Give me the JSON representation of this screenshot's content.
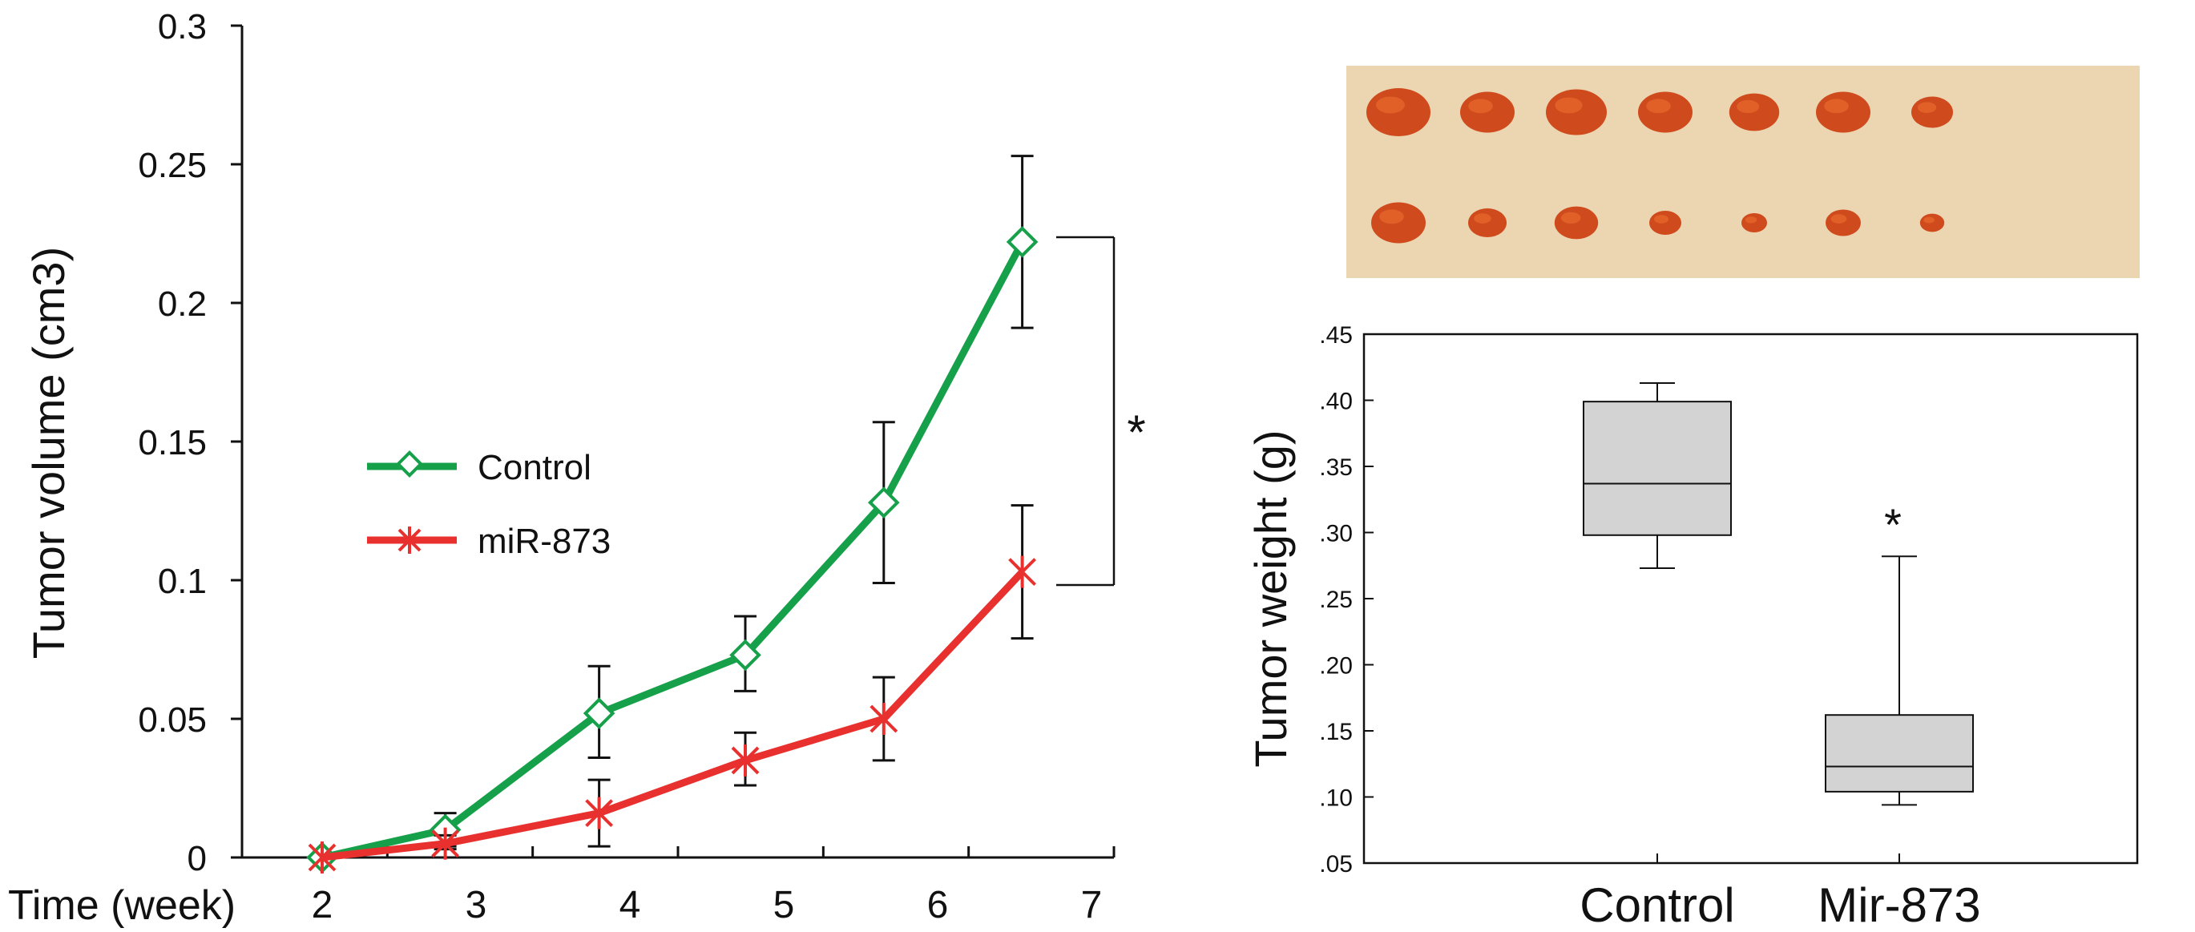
{
  "colors": {
    "control": "#16a04a",
    "mir873": "#e8312f",
    "box_fill": "#d3d3d3",
    "photo_bg": "#ecd5b1",
    "tumor": "#cf4a1c",
    "axis": "#111111"
  },
  "chart_data": [
    {
      "type": "line",
      "title": "",
      "xlabel": "Time (week)",
      "ylabel": "Tumor volume (cm3)",
      "x": [
        2,
        3,
        4,
        5,
        6,
        7
      ],
      "x_tick_labels": [
        "2",
        "3",
        "4",
        "5",
        "6",
        "7"
      ],
      "y_tick_labels": [
        "0",
        "0.05",
        "0.1",
        "0.15",
        "0.2",
        "0.25",
        "0.3"
      ],
      "ylim": [
        0,
        0.3
      ],
      "legend": "center-left",
      "series": [
        {
          "name": "Control",
          "marker": "diamond",
          "color": "#16a04a",
          "points": [
            {
              "x": 2,
              "y": 0.0,
              "err_low": 0.0,
              "err_high": 0.0
            },
            {
              "x": 2.8,
              "y": 0.01,
              "err_low": 0.004,
              "err_high": 0.016
            },
            {
              "x": 3.8,
              "y": 0.052,
              "err_low": 0.036,
              "err_high": 0.069
            },
            {
              "x": 4.75,
              "y": 0.073,
              "err_low": 0.06,
              "err_high": 0.087
            },
            {
              "x": 5.65,
              "y": 0.128,
              "err_low": 0.099,
              "err_high": 0.157
            },
            {
              "x": 6.55,
              "y": 0.222,
              "err_low": 0.191,
              "err_high": 0.253
            }
          ]
        },
        {
          "name": "miR-873",
          "marker": "asterisk",
          "color": "#e8312f",
          "points": [
            {
              "x": 2,
              "y": 0.0,
              "err_low": 0.0,
              "err_high": 0.0
            },
            {
              "x": 2.8,
              "y": 0.005,
              "err_low": 0.003,
              "err_high": 0.008
            },
            {
              "x": 3.8,
              "y": 0.016,
              "err_low": 0.004,
              "err_high": 0.028
            },
            {
              "x": 4.75,
              "y": 0.035,
              "err_low": 0.026,
              "err_high": 0.045
            },
            {
              "x": 5.65,
              "y": 0.05,
              "err_low": 0.035,
              "err_high": 0.065
            },
            {
              "x": 6.55,
              "y": 0.103,
              "err_low": 0.079,
              "err_high": 0.127
            }
          ]
        }
      ],
      "significance_label": "*"
    },
    {
      "type": "box",
      "title": "",
      "xlabel": "",
      "ylabel": "Tumor weight (g)",
      "categories": [
        "Control",
        "Mir-873"
      ],
      "y_tick_labels": [
        ".05",
        ".10",
        ".15",
        ".20",
        ".25",
        ".30",
        ".35",
        ".40",
        ".45"
      ],
      "ylim": [
        0.05,
        0.45
      ],
      "boxes": [
        {
          "name": "Control",
          "min": 0.273,
          "q1": 0.298,
          "median": 0.337,
          "q3": 0.399,
          "max": 0.413
        },
        {
          "name": "Mir-873",
          "min": 0.094,
          "q1": 0.104,
          "median": 0.123,
          "q3": 0.162,
          "max": 0.282,
          "annotation": "*"
        }
      ]
    }
  ],
  "photo": {
    "rows": [
      [
        1.0,
        0.85,
        0.95,
        0.85,
        0.78,
        0.85,
        0.65
      ],
      [
        0.85,
        0.6,
        0.68,
        0.5,
        0.4,
        0.55,
        0.38
      ]
    ]
  }
}
